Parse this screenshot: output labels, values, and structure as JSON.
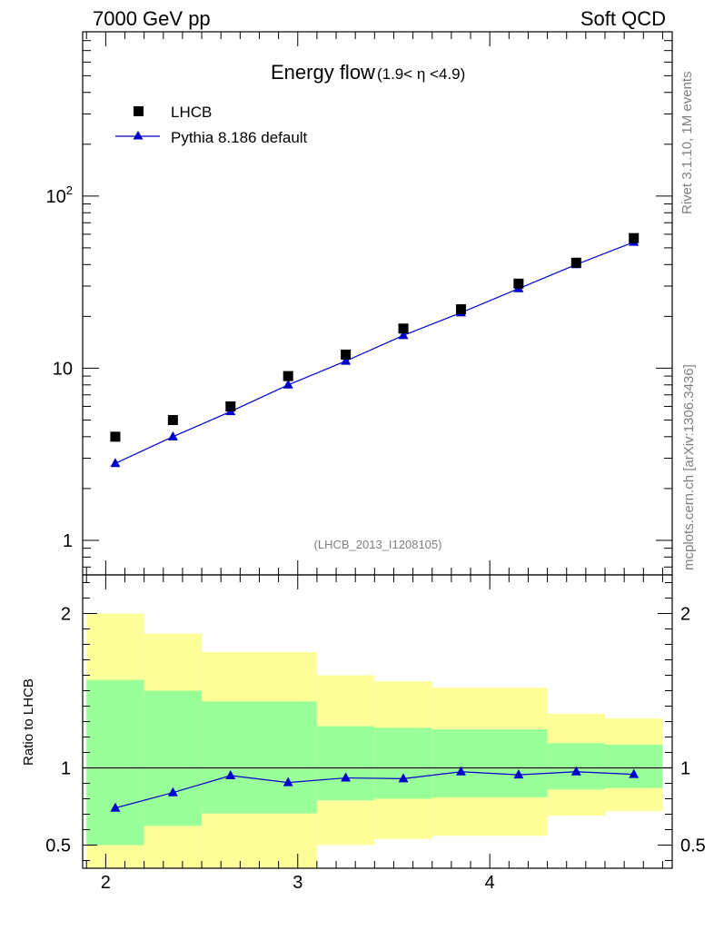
{
  "header": {
    "left": "7000 GeV pp",
    "right": "Soft QCD"
  },
  "side_text": {
    "rivet": "Rivet 3.1.10,  1M events",
    "mcplots": "mcplots.cern.ch [arXiv:1306.3436]"
  },
  "title": {
    "main": "Energy flow",
    "sub": "(1.9< η <4.9)"
  },
  "analysis_id": "(LHCB_2013_I1208105)",
  "legend": {
    "data_label": "LHCB",
    "mc_label": "Pythia 8.186 default"
  },
  "colors": {
    "mc": "#0000cc",
    "band_inner": "#99ff99",
    "band_outer": "#ffff99",
    "data": "#000000"
  },
  "chart_data": [
    {
      "type": "scatter",
      "title": "Energy flow (1.9< η <4.9)",
      "xlim": [
        1.88,
        4.95
      ],
      "ylim": [
        0.63,
        900
      ],
      "yscale": "log",
      "y_ticks": [
        {
          "v": 1,
          "label": "1"
        },
        {
          "v": 10,
          "label": "10"
        },
        {
          "v": 100,
          "label": "10",
          "exp": "2"
        }
      ],
      "legend_position": "top-left",
      "series": [
        {
          "name": "LHCB",
          "x": [
            2.05,
            2.35,
            2.65,
            2.95,
            3.25,
            3.55,
            3.85,
            4.15,
            4.45,
            4.75
          ],
          "y": [
            4.0,
            5.0,
            6.0,
            9.0,
            12.0,
            17.0,
            22.0,
            31.0,
            41.0,
            57.0
          ]
        },
        {
          "name": "Pythia 8.186 default",
          "x": [
            2.05,
            2.35,
            2.65,
            2.95,
            3.25,
            3.55,
            3.85,
            4.15,
            4.45,
            4.75
          ],
          "y": [
            2.8,
            4.0,
            5.6,
            8.0,
            11.0,
            15.5,
            21.0,
            29.0,
            40.0,
            54.0
          ]
        }
      ]
    },
    {
      "type": "line",
      "ylabel": "Ratio to LHCB",
      "xlim": [
        1.88,
        4.95
      ],
      "ylim": [
        0.35,
        2.25
      ],
      "x_ticks": [
        2,
        3,
        4
      ],
      "y_ticks": [
        0.5,
        1,
        2
      ],
      "reference_line": 1,
      "bands": [
        {
          "x0": 1.9,
          "x1": 2.2,
          "inner": [
            0.5,
            1.57
          ],
          "outer": [
            0.0,
            2.0
          ]
        },
        {
          "x0": 2.2,
          "x1": 2.5,
          "inner": [
            0.625,
            1.5
          ],
          "outer": [
            0.0,
            1.87
          ]
        },
        {
          "x0": 2.5,
          "x1": 3.1,
          "inner": [
            0.705,
            1.43
          ],
          "outer": [
            0.0,
            1.75
          ]
        },
        {
          "x0": 3.1,
          "x1": 3.4,
          "inner": [
            0.79,
            1.27
          ],
          "outer": [
            0.5,
            1.6
          ]
        },
        {
          "x0": 3.4,
          "x1": 3.7,
          "inner": [
            0.8,
            1.26
          ],
          "outer": [
            0.54,
            1.56
          ]
        },
        {
          "x0": 3.7,
          "x1": 4.3,
          "inner": [
            0.81,
            1.25
          ],
          "outer": [
            0.56,
            1.52
          ]
        },
        {
          "x0": 4.3,
          "x1": 4.6,
          "inner": [
            0.86,
            1.16
          ],
          "outer": [
            0.69,
            1.35
          ]
        },
        {
          "x0": 4.6,
          "x1": 4.9,
          "inner": [
            0.87,
            1.15
          ],
          "outer": [
            0.72,
            1.32
          ]
        }
      ],
      "series": [
        {
          "name": "Pythia 8.186 default",
          "x": [
            2.05,
            2.35,
            2.65,
            2.95,
            3.25,
            3.55,
            3.85,
            4.15,
            4.45,
            4.75
          ],
          "y": [
            0.74,
            0.84,
            0.95,
            0.905,
            0.935,
            0.93,
            0.975,
            0.955,
            0.975,
            0.958
          ]
        }
      ]
    }
  ]
}
